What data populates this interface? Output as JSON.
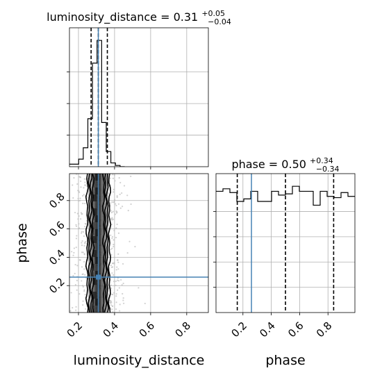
{
  "chart_data": {
    "type": "corner",
    "parameters": [
      "luminosity_distance",
      "phase"
    ],
    "truth": {
      "luminosity_distance": 0.31,
      "phase": 0.26,
      "color": "#4682b4"
    },
    "titles": {
      "luminosity_distance": {
        "prefix": "luminosity_distance = 0.31",
        "upper": "+0.05",
        "lower": "−0.04"
      },
      "phase": {
        "prefix": "phase = 0.50",
        "upper": "+0.34",
        "lower": "−0.34"
      }
    },
    "axes": {
      "luminosity_distance": {
        "range": [
          0.15,
          0.92
        ],
        "ticks": [
          0.2,
          0.4,
          0.6,
          0.8
        ],
        "tick_labels": [
          "0.2",
          "0.4",
          "0.6",
          "0.8"
        ],
        "label": "luminosity_distance"
      },
      "phase": {
        "range": [
          0.01,
          0.99
        ],
        "ticks": [
          0.2,
          0.4,
          0.6,
          0.8
        ],
        "tick_labels": [
          "0.2",
          "0.4",
          "0.6",
          "0.8"
        ],
        "label": "phase"
      }
    },
    "marginal_luminosity_distance": {
      "bin_edges": [
        0.15,
        0.1755,
        0.201,
        0.2265,
        0.252,
        0.2775,
        0.303,
        0.3285,
        0.354,
        0.3795,
        0.405,
        0.4305,
        0.456
      ],
      "counts": [
        0.02,
        0.02,
        0.06,
        0.15,
        0.38,
        0.82,
        1.0,
        0.35,
        0.12,
        0.03,
        0.01,
        0.0
      ],
      "quantiles": [
        0.27,
        0.31,
        0.36
      ]
    },
    "marginal_phase": {
      "bin_edges": [
        0.01,
        0.059,
        0.108,
        0.157,
        0.206,
        0.255,
        0.304,
        0.353,
        0.402,
        0.451,
        0.5,
        0.549,
        0.598,
        0.647,
        0.696,
        0.745,
        0.794,
        0.843,
        0.892,
        0.941,
        0.99
      ],
      "counts": [
        0.96,
        0.98,
        0.95,
        0.88,
        0.9,
        0.96,
        0.88,
        0.88,
        0.96,
        0.93,
        0.94,
        1.0,
        0.96,
        0.96,
        0.85,
        0.96,
        0.92,
        0.91,
        0.95,
        0.92
      ],
      "quantiles": [
        0.16,
        0.5,
        0.84
      ]
    },
    "joint": {
      "x_center": 0.31,
      "x_spread": 0.04,
      "y_range": [
        0.01,
        0.99
      ]
    }
  }
}
